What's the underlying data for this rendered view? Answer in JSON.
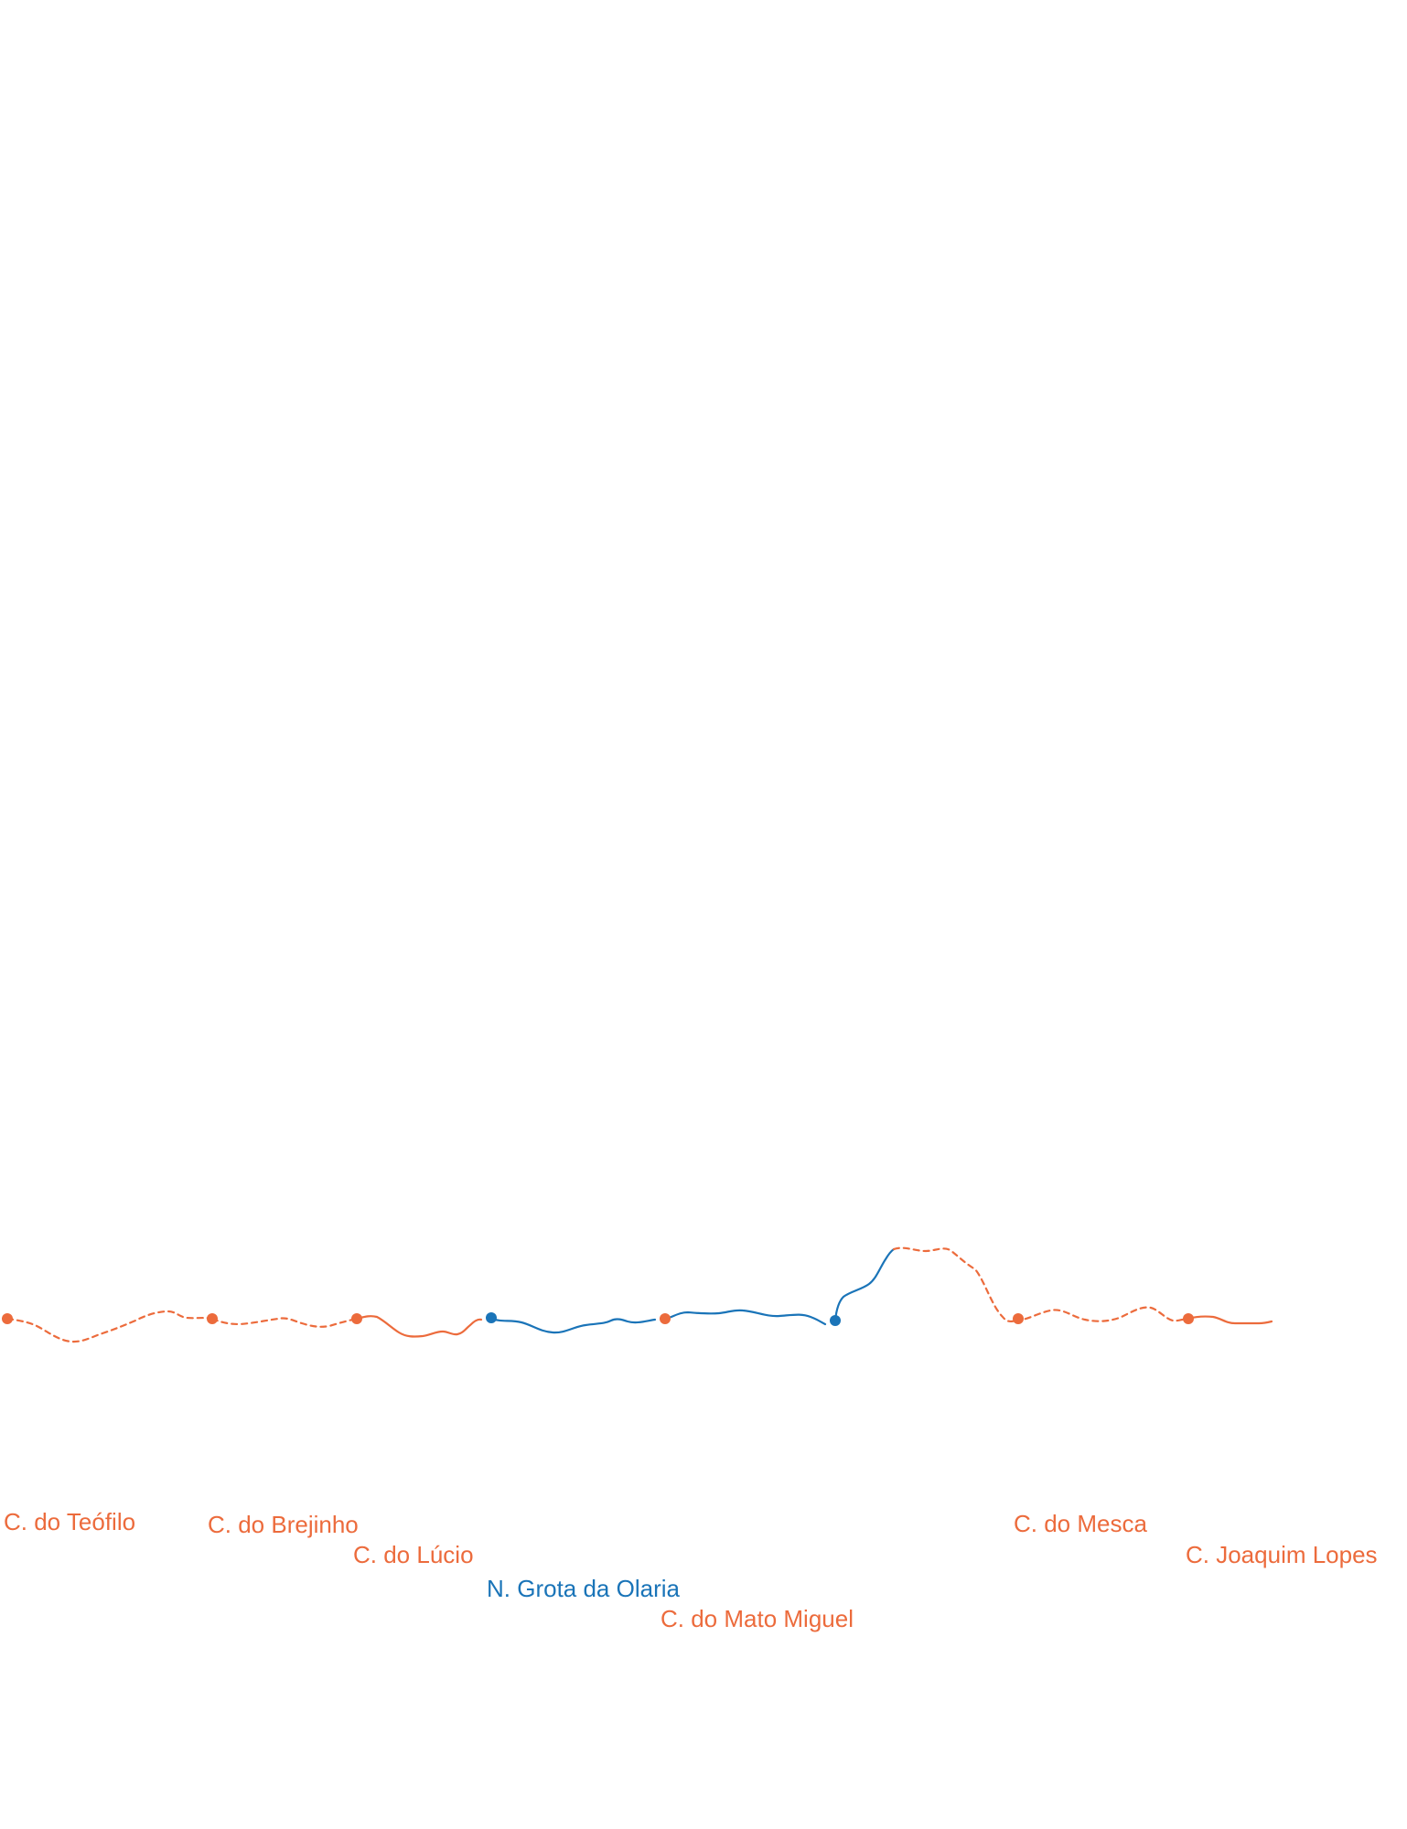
{
  "colors": {
    "orange": "#ec6b3c",
    "blue": "#1a74b8"
  },
  "stops": [
    {
      "id": "teofilo",
      "label": "C. do Teófilo",
      "color": "orange",
      "kind": "cemiterio"
    },
    {
      "id": "brejinho",
      "label": "C. do Brejinho",
      "color": "orange",
      "kind": "cemiterio"
    },
    {
      "id": "lucio",
      "label": "C. do Lúcio",
      "color": "orange",
      "kind": "cemiterio"
    },
    {
      "id": "grota",
      "label": "N. Grota da Olaria",
      "color": "blue",
      "kind": "nucleo"
    },
    {
      "id": "mato",
      "label": "C. do Mato Miguel",
      "color": "orange",
      "kind": "cemiterio"
    },
    {
      "id": "unlabeled",
      "label": "",
      "color": "blue",
      "kind": "nucleo"
    },
    {
      "id": "mesca",
      "label": "C. do Mesca",
      "color": "orange",
      "kind": "cemiterio"
    },
    {
      "id": "joaquim",
      "label": "C. Joaquim Lopes",
      "color": "orange",
      "kind": "cemiterio"
    }
  ],
  "segments": [
    {
      "id": "teofilo-brejinho",
      "color": "orange",
      "style": "dashed"
    },
    {
      "id": "brejinho-lucio",
      "color": "orange",
      "style": "dashed"
    },
    {
      "id": "lucio-grota",
      "color": "orange",
      "style": "solid"
    },
    {
      "id": "grota-mato",
      "color": "blue",
      "style": "solid"
    },
    {
      "id": "mato-unlabeled",
      "color": "blue",
      "style": "solid"
    },
    {
      "id": "unlabeled-peak",
      "color": "blue",
      "style": "solid"
    },
    {
      "id": "peak-mesca",
      "color": "orange",
      "style": "dashed"
    },
    {
      "id": "mesca-joaquim",
      "color": "orange",
      "style": "dashed"
    },
    {
      "id": "joaquim-end",
      "color": "orange",
      "style": "solid"
    }
  ]
}
